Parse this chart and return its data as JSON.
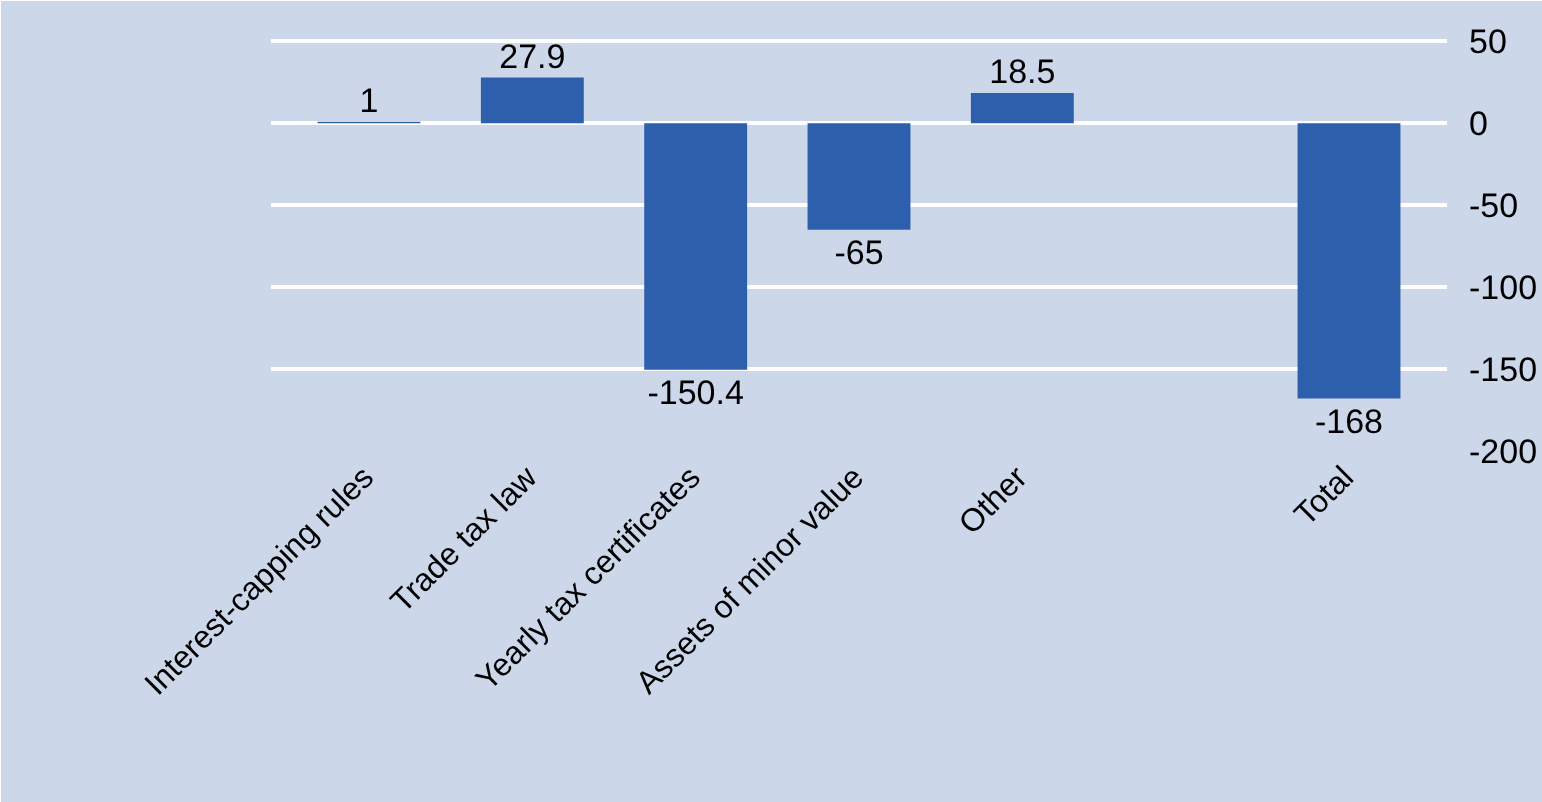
{
  "chart_data": {
    "type": "bar",
    "categories": [
      "Interest-capping rules",
      "Trade tax law",
      "Yearly tax certificates",
      "Assets of minor value",
      "Other",
      null,
      "Total"
    ],
    "values": [
      1,
      27.9,
      -150.4,
      -65,
      18.5,
      null,
      -168
    ],
    "color": "#2e5fac",
    "ylim": [
      -200,
      60
    ],
    "yticks": [
      -200,
      -150,
      -100,
      -50,
      0,
      50
    ],
    "grid": "y",
    "data_labels": true
  }
}
